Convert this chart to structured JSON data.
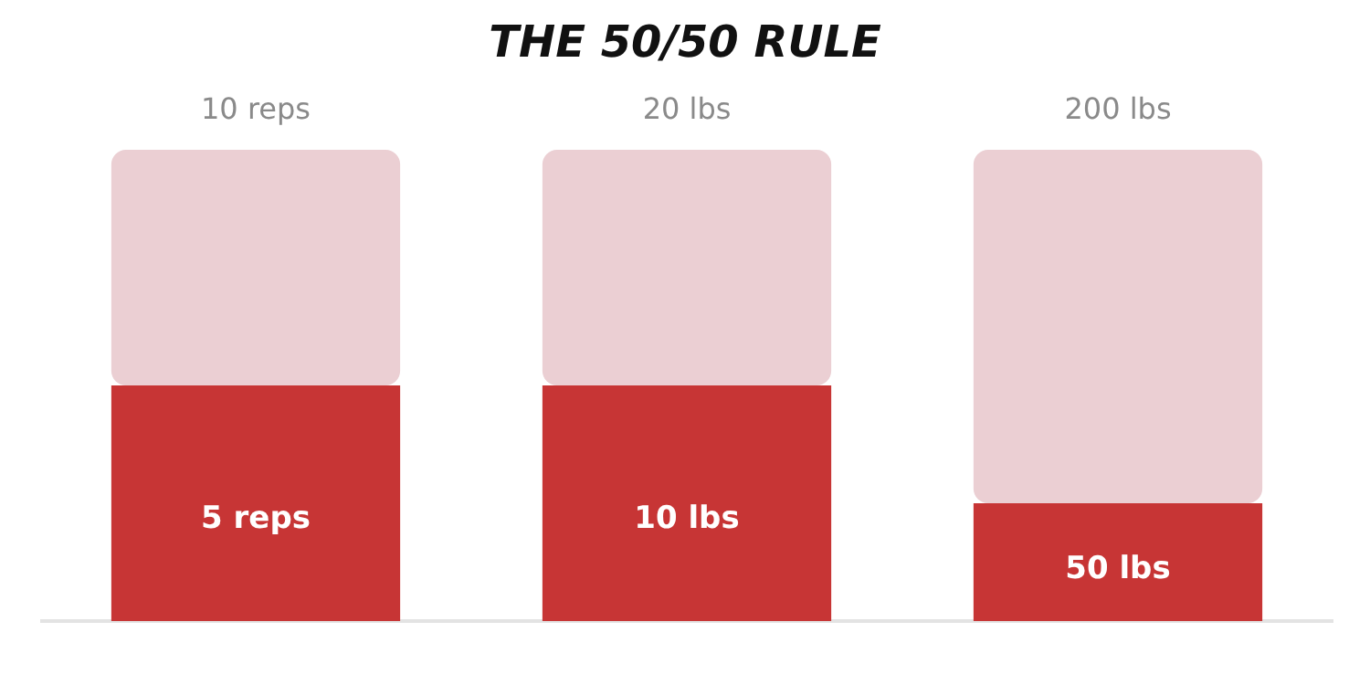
{
  "chart_data": [
    {
      "type": "other",
      "title": "THE 50/50 RULE"
    },
    {
      "type": "bar",
      "stacked": true,
      "categories": [
        null
      ],
      "ylim": [
        0,
        10
      ],
      "tick_labels": false,
      "grid": false,
      "legend": false,
      "series": [
        {
          "color": "#c73535",
          "values": [
            5
          ],
          "value_labels": [
            "5 reps"
          ]
        },
        {
          "color": "#ebcfd3",
          "values": [
            5
          ]
        }
      ],
      "totals": [
        "10 reps"
      ]
    },
    {
      "type": "bar",
      "stacked": true,
      "categories": [
        null
      ],
      "ylim": [
        0,
        20
      ],
      "tick_labels": false,
      "grid": false,
      "legend": false,
      "series": [
        {
          "color": "#c73535",
          "values": [
            10
          ],
          "value_labels": [
            "10 lbs"
          ]
        },
        {
          "color": "#ebcfd3",
          "values": [
            10
          ]
        }
      ],
      "totals": [
        "20 lbs"
      ]
    },
    {
      "type": "bar",
      "stacked": true,
      "categories": [
        null
      ],
      "ylim": [
        0,
        200
      ],
      "tick_labels": false,
      "grid": false,
      "legend": false,
      "series": [
        {
          "color": "#c73535",
          "values": [
            50
          ],
          "value_labels": [
            "50 lbs"
          ]
        },
        {
          "color": "#ebcfd3",
          "values": [
            150
          ]
        }
      ],
      "totals": [
        "200 lbs"
      ]
    }
  ]
}
